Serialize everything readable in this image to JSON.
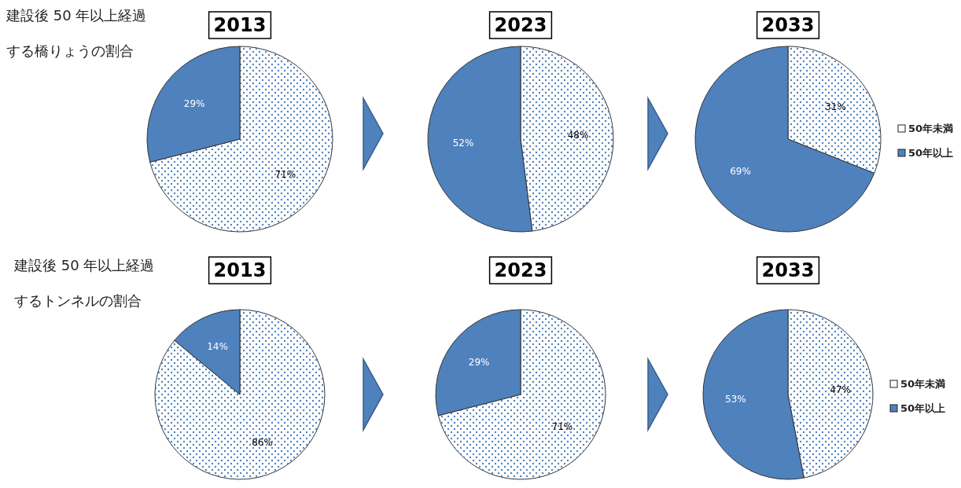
{
  "chart_data": [
    {
      "type": "pie",
      "title": "2013",
      "categories": [
        null,
        null
      ],
      "values": [
        71,
        29
      ],
      "value_labels": [
        "71%",
        "29%"
      ],
      "colors": [
        "#ffffff",
        "#4f81bd"
      ],
      "annotations": [
        "建設後 50 年以上経過",
        "する橋りょうの割合"
      ]
    },
    {
      "type": "pie",
      "title": "2023",
      "categories": [
        null,
        null
      ],
      "values": [
        48,
        52
      ],
      "value_labels": [
        "48%",
        "52%"
      ],
      "colors": [
        "#ffffff",
        "#4f81bd"
      ]
    },
    {
      "type": "pie",
      "title": "2033",
      "categories": [
        "50年未満",
        "50年以上"
      ],
      "values": [
        31,
        69
      ],
      "value_labels": [
        "31%",
        "69%"
      ],
      "colors": [
        "#ffffff",
        "#4f81bd"
      ],
      "legend": "right"
    },
    {
      "type": "pie",
      "title": "2013",
      "categories": [
        null,
        null
      ],
      "values": [
        86,
        14
      ],
      "value_labels": [
        "86%",
        "14%"
      ],
      "colors": [
        "#ffffff",
        "#4f81bd"
      ],
      "annotations": [
        "建設後 50 年以上経過",
        "するトンネルの割合"
      ]
    },
    {
      "type": "pie",
      "title": "2023",
      "categories": [
        null,
        null
      ],
      "values": [
        71,
        29
      ],
      "value_labels": [
        "71%",
        "29%"
      ],
      "colors": [
        "#ffffff",
        "#4f81bd"
      ]
    },
    {
      "type": "pie",
      "title": "2033",
      "categories": [
        "50年未満",
        "50年以上"
      ],
      "values": [
        47,
        53
      ],
      "value_labels": [
        "47%",
        "53%"
      ],
      "colors": [
        "#ffffff",
        "#4f81bd"
      ],
      "legend": "right"
    }
  ]
}
